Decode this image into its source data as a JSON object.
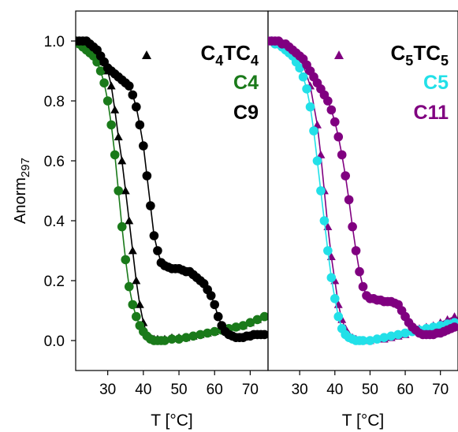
{
  "chart_data": [
    {
      "type": "scatter",
      "xlabel": "T [°C]",
      "ylabel": "Anorm",
      "ylabel_subscript": "297",
      "xlim": [
        21,
        75
      ],
      "ylim": [
        -0.1,
        1.1
      ],
      "xticks": [
        "30",
        "40",
        "50",
        "60",
        "70"
      ],
      "xtick_values": [
        30,
        40,
        50,
        60,
        70
      ],
      "yticks": [
        "0.0",
        "0.2",
        "0.4",
        "0.6",
        "0.8",
        "1.0"
      ],
      "ytick_values": [
        0.0,
        0.2,
        0.4,
        0.6,
        0.8,
        1.0
      ],
      "legend_position": "top-right",
      "legend": [
        {
          "marker": "triangle",
          "text": "C",
          "sub1": "4",
          "mid": "TC",
          "sub2": "4",
          "color": "#000000"
        },
        {
          "marker": "none",
          "text": "C4",
          "color": "#1a7a1a"
        },
        {
          "marker": "none",
          "text": "C9",
          "color": "#000000"
        }
      ],
      "series": [
        {
          "key": "C4TC4",
          "marker": "triangle",
          "color": "#000000",
          "x": [
            21,
            23,
            25,
            27,
            29,
            30,
            31,
            32,
            33,
            34,
            35,
            36,
            37,
            38,
            39,
            40,
            41,
            42,
            43,
            44,
            46,
            48,
            50,
            52,
            54,
            56,
            58,
            60,
            62,
            64,
            66,
            68,
            70,
            72,
            74
          ],
          "y": [
            1.0,
            0.99,
            0.98,
            0.96,
            0.93,
            0.9,
            0.85,
            0.77,
            0.68,
            0.6,
            0.5,
            0.4,
            0.3,
            0.2,
            0.12,
            0.06,
            0.02,
            0.01,
            0.005,
            0.005,
            0.005,
            0.01,
            0.01,
            0.01,
            0.015,
            0.02,
            0.025,
            0.03,
            0.035,
            0.04,
            0.045,
            0.05,
            0.06,
            0.07,
            0.08
          ]
        },
        {
          "key": "C4",
          "marker": "circle",
          "color": "#1a7a1a",
          "x": [
            21,
            22,
            23,
            24,
            25,
            26,
            27,
            28,
            29,
            30,
            31,
            32,
            33,
            34,
            35,
            36,
            37,
            38,
            39,
            40,
            41,
            42,
            43,
            44,
            45,
            46,
            48,
            50,
            52,
            54,
            56,
            58,
            60,
            62,
            64,
            66,
            68,
            70,
            72,
            74
          ],
          "y": [
            1.0,
            0.99,
            0.98,
            0.97,
            0.96,
            0.95,
            0.93,
            0.9,
            0.86,
            0.8,
            0.72,
            0.62,
            0.5,
            0.38,
            0.27,
            0.18,
            0.12,
            0.08,
            0.05,
            0.03,
            0.015,
            0.005,
            0.0,
            0.0,
            0.0,
            0.0,
            0.005,
            0.005,
            0.01,
            0.015,
            0.02,
            0.025,
            0.03,
            0.035,
            0.04,
            0.045,
            0.05,
            0.06,
            0.07,
            0.08
          ]
        },
        {
          "key": "C9",
          "marker": "circle",
          "color": "#000000",
          "x": [
            21,
            22,
            23,
            24,
            25,
            26,
            27,
            28,
            29,
            30,
            31,
            32,
            33,
            34,
            35,
            36,
            37,
            38,
            39,
            40,
            41,
            42,
            43,
            44,
            45,
            46,
            47,
            48,
            49,
            50,
            51,
            52,
            53,
            54,
            55,
            56,
            57,
            58,
            59,
            60,
            61,
            62,
            63,
            64,
            65,
            66,
            67,
            68,
            69,
            70,
            71,
            72,
            73,
            74
          ],
          "y": [
            1.0,
            1.0,
            1.0,
            1.0,
            0.99,
            0.98,
            0.97,
            0.95,
            0.93,
            0.91,
            0.9,
            0.89,
            0.88,
            0.87,
            0.86,
            0.85,
            0.82,
            0.78,
            0.72,
            0.65,
            0.55,
            0.45,
            0.35,
            0.3,
            0.26,
            0.25,
            0.245,
            0.24,
            0.24,
            0.24,
            0.235,
            0.23,
            0.23,
            0.22,
            0.21,
            0.2,
            0.19,
            0.17,
            0.15,
            0.12,
            0.08,
            0.05,
            0.03,
            0.02,
            0.015,
            0.01,
            0.01,
            0.01,
            0.015,
            0.015,
            0.02,
            0.02,
            0.02,
            0.02
          ]
        }
      ]
    },
    {
      "type": "scatter",
      "xlabel": "T [°C]",
      "xlim": [
        21,
        75
      ],
      "ylim": [
        -0.1,
        1.1
      ],
      "xticks": [
        "30",
        "40",
        "50",
        "60",
        "70"
      ],
      "xtick_values": [
        30,
        40,
        50,
        60,
        70
      ],
      "legend_position": "top-right",
      "legend": [
        {
          "marker": "triangle",
          "text": "C",
          "sub1": "5",
          "mid": "TC",
          "sub2": "5",
          "color": "#800080"
        },
        {
          "marker": "none",
          "text": "C5",
          "color": "#22e0e8"
        },
        {
          "marker": "none",
          "text": "C11",
          "color": "#800080"
        }
      ],
      "series": [
        {
          "key": "C5TC5",
          "marker": "triangle",
          "color": "#800080",
          "x": [
            21,
            23,
            25,
            27,
            29,
            31,
            33,
            35,
            36,
            37,
            38,
            39,
            40,
            41,
            42,
            43,
            44,
            45,
            46,
            47,
            48,
            50,
            52,
            54,
            56,
            58,
            60,
            62,
            64,
            66,
            68,
            70,
            72,
            74
          ],
          "y": [
            1.0,
            1.0,
            0.99,
            0.98,
            0.96,
            0.92,
            0.85,
            0.72,
            0.62,
            0.5,
            0.38,
            0.28,
            0.2,
            0.12,
            0.07,
            0.04,
            0.02,
            0.01,
            0.005,
            0.0,
            0.0,
            0.0,
            0.005,
            0.005,
            0.01,
            0.015,
            0.02,
            0.03,
            0.04,
            0.045,
            0.05,
            0.06,
            0.07,
            0.08
          ]
        },
        {
          "key": "C5",
          "marker": "circle",
          "color": "#22e0e8",
          "x": [
            21,
            22,
            23,
            24,
            25,
            26,
            27,
            28,
            29,
            30,
            31,
            32,
            33,
            34,
            35,
            36,
            37,
            38,
            39,
            40,
            41,
            42,
            43,
            44,
            45,
            46,
            47,
            48,
            50,
            52,
            54,
            56,
            58,
            60,
            62,
            64,
            66,
            68,
            70,
            72,
            74
          ],
          "y": [
            1.0,
            1.0,
            0.99,
            0.99,
            0.98,
            0.97,
            0.96,
            0.95,
            0.93,
            0.91,
            0.88,
            0.84,
            0.78,
            0.7,
            0.6,
            0.5,
            0.4,
            0.3,
            0.21,
            0.14,
            0.08,
            0.04,
            0.02,
            0.01,
            0.005,
            0.0,
            0.0,
            0.0,
            0.0,
            0.005,
            0.01,
            0.015,
            0.02,
            0.025,
            0.03,
            0.035,
            0.04,
            0.045,
            0.05,
            0.055,
            0.06
          ]
        },
        {
          "key": "C11",
          "marker": "circle",
          "color": "#800080",
          "x": [
            21,
            22,
            23,
            24,
            25,
            26,
            27,
            28,
            29,
            30,
            31,
            32,
            33,
            34,
            35,
            36,
            37,
            38,
            39,
            40,
            41,
            42,
            43,
            44,
            45,
            46,
            47,
            48,
            49,
            50,
            51,
            52,
            53,
            54,
            55,
            56,
            57,
            58,
            59,
            60,
            61,
            62,
            63,
            64,
            65,
            66,
            67,
            68,
            69,
            70,
            71,
            72,
            73,
            74
          ],
          "y": [
            1.0,
            1.0,
            1.0,
            1.0,
            0.99,
            0.99,
            0.98,
            0.97,
            0.96,
            0.95,
            0.94,
            0.92,
            0.9,
            0.88,
            0.86,
            0.84,
            0.82,
            0.8,
            0.77,
            0.73,
            0.68,
            0.62,
            0.55,
            0.47,
            0.38,
            0.3,
            0.23,
            0.18,
            0.15,
            0.14,
            0.14,
            0.135,
            0.135,
            0.13,
            0.13,
            0.13,
            0.125,
            0.12,
            0.1,
            0.08,
            0.06,
            0.045,
            0.035,
            0.025,
            0.02,
            0.02,
            0.02,
            0.02,
            0.025,
            0.025,
            0.03,
            0.035,
            0.04,
            0.045
          ]
        }
      ]
    }
  ]
}
